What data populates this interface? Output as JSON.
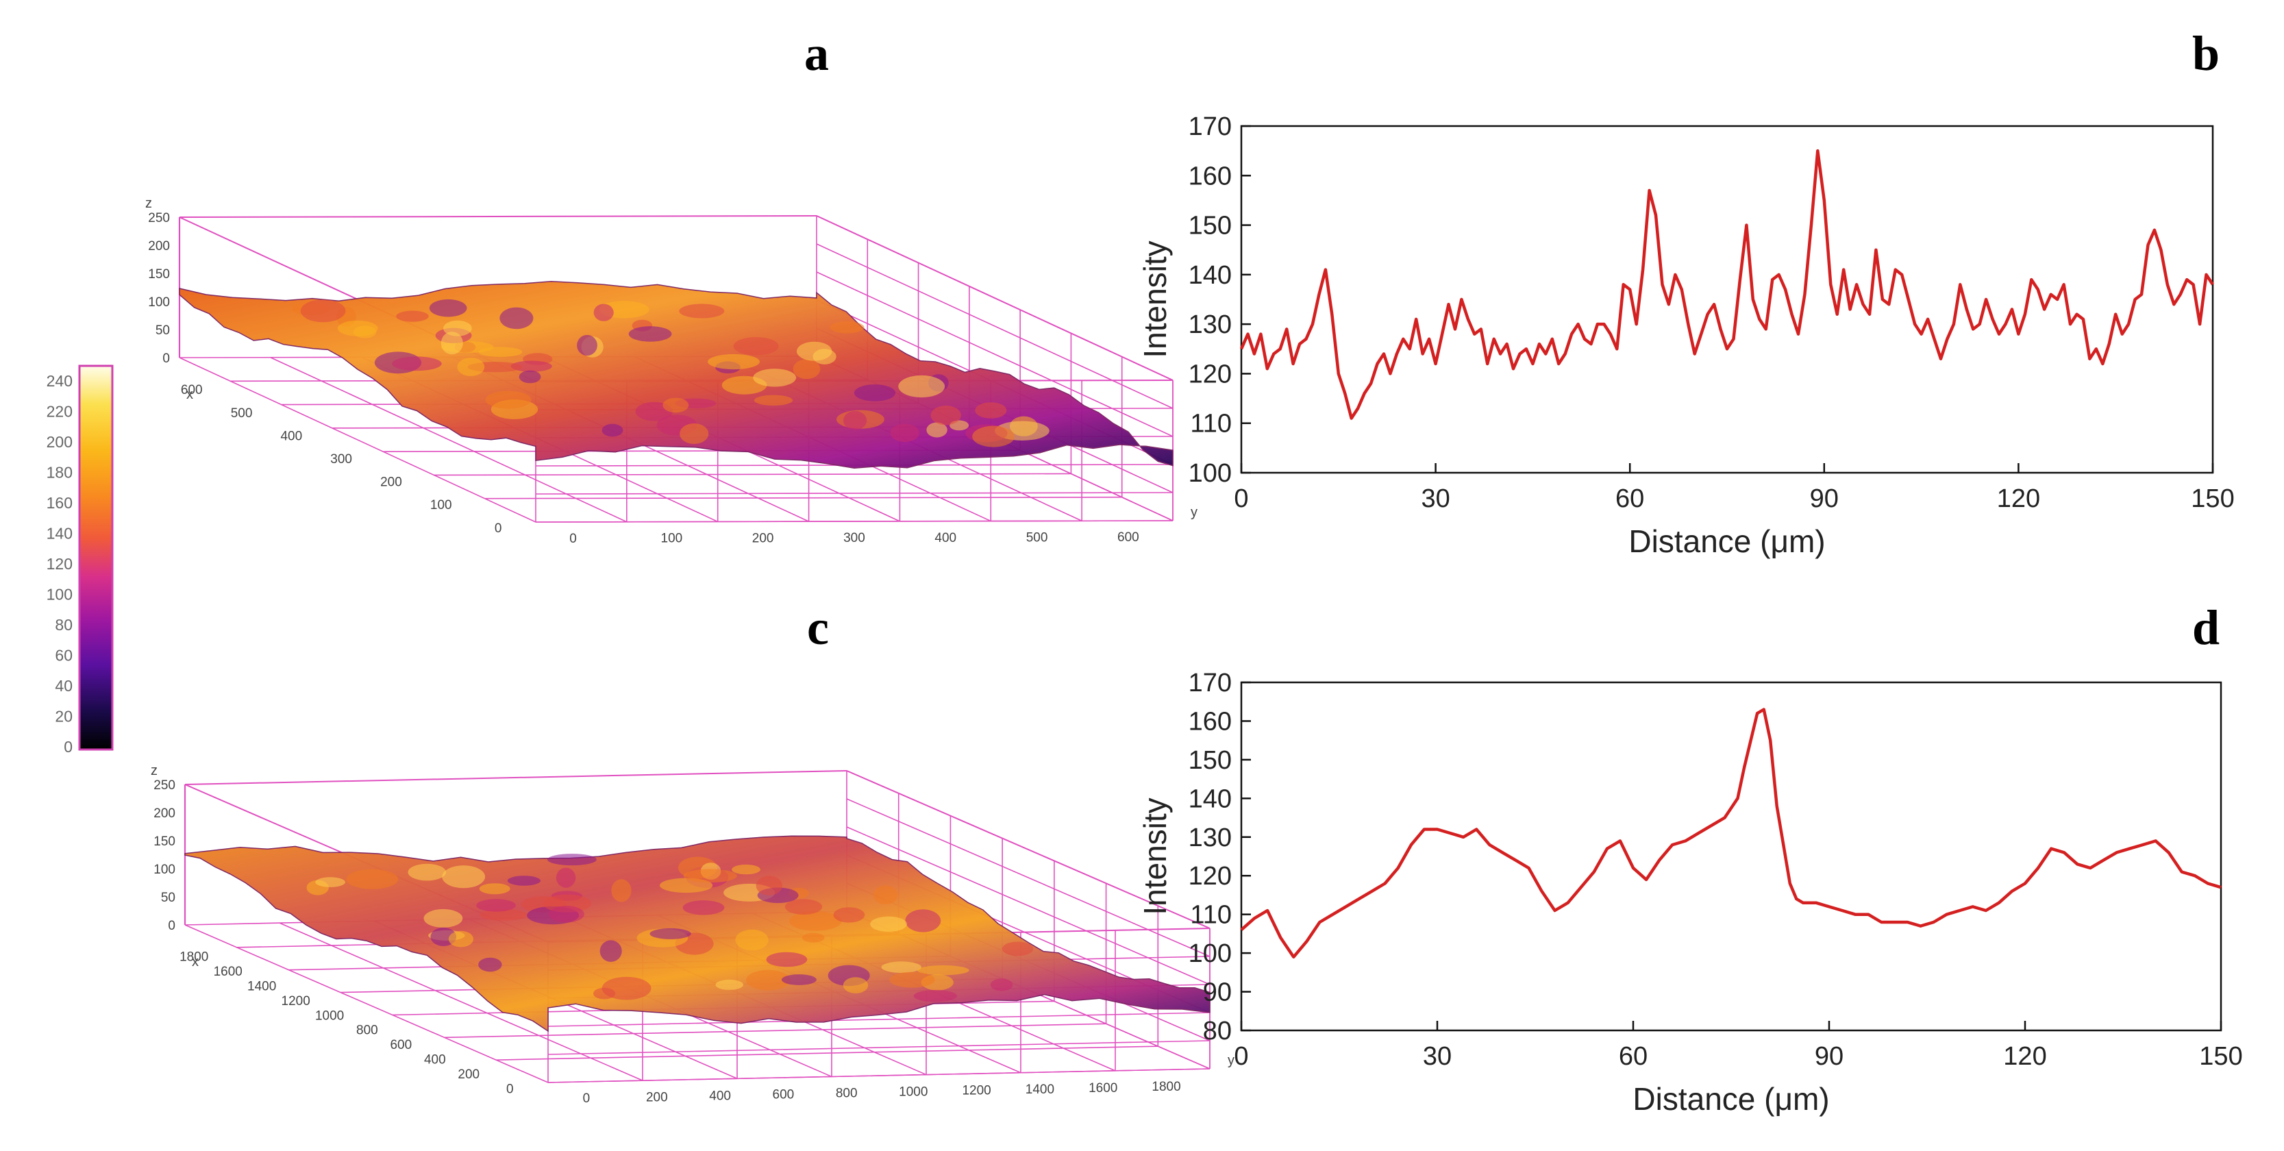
{
  "panels": {
    "a": "a",
    "b": "b",
    "c": "c",
    "d": "d"
  },
  "colorbar": {
    "ticks": [
      "0",
      "20",
      "40",
      "60",
      "80",
      "100",
      "120",
      "140",
      "160",
      "180",
      "200",
      "220",
      "240"
    ],
    "colors": [
      "#000000",
      "#1a0a4a",
      "#5a10a0",
      "#a018a0",
      "#d8308a",
      "#f05a3a",
      "#f88a20",
      "#fbb81a",
      "#fce050",
      "#fffde8"
    ]
  },
  "surface_a": {
    "z_label": "z",
    "x_label": "x",
    "y_label": "y",
    "z_ticks": [
      "250",
      "200",
      "150",
      "100",
      "50",
      "0"
    ],
    "x_ticks": [
      "600",
      "500",
      "400",
      "300",
      "200",
      "100",
      "0"
    ],
    "y_ticks": [
      "0",
      "100",
      "200",
      "300",
      "400",
      "500",
      "600"
    ]
  },
  "surface_c": {
    "z_label": "z",
    "x_label": "x",
    "y_label": "y",
    "z_ticks": [
      "250",
      "200",
      "150",
      "100",
      "50",
      "0"
    ],
    "x_ticks": [
      "1800",
      "1600",
      "1400",
      "1200",
      "1000",
      "800",
      "600",
      "400",
      "200",
      "0"
    ],
    "y_ticks": [
      "0",
      "200",
      "400",
      "600",
      "800",
      "1000",
      "1200",
      "1400",
      "1600",
      "1800"
    ]
  },
  "chart_data": [
    {
      "panel": "b",
      "type": "line",
      "title": "",
      "xlabel": "Distance (μm)",
      "ylabel": "Intensity",
      "xlim": [
        0,
        150
      ],
      "ylim": [
        100,
        170
      ],
      "xticks": [
        0,
        30,
        60,
        90,
        120,
        150
      ],
      "yticks": [
        100,
        110,
        120,
        130,
        140,
        150,
        160,
        170
      ],
      "line_color": "#d42020",
      "x": [
        0,
        1,
        2,
        3,
        4,
        5,
        6,
        7,
        8,
        9,
        10,
        11,
        12,
        13,
        14,
        15,
        16,
        17,
        18,
        19,
        20,
        21,
        22,
        23,
        24,
        25,
        26,
        27,
        28,
        29,
        30,
        31,
        32,
        33,
        34,
        35,
        36,
        37,
        38,
        39,
        40,
        41,
        42,
        43,
        44,
        45,
        46,
        47,
        48,
        49,
        50,
        51,
        52,
        53,
        54,
        55,
        56,
        57,
        58,
        59,
        60,
        61,
        62,
        63,
        64,
        65,
        66,
        67,
        68,
        69,
        70,
        71,
        72,
        73,
        74,
        75,
        76,
        77,
        78,
        79,
        80,
        81,
        82,
        83,
        84,
        85,
        86,
        87,
        88,
        89,
        90,
        91,
        92,
        93,
        94,
        95,
        96,
        97,
        98,
        99,
        100,
        101,
        102,
        103,
        104,
        105,
        106,
        107,
        108,
        109,
        110,
        111,
        112,
        113,
        114,
        115,
        116,
        117,
        118,
        119,
        120,
        121,
        122,
        123,
        124,
        125,
        126,
        127,
        128,
        129,
        130,
        131,
        132,
        133,
        134,
        135,
        136,
        137,
        138,
        139,
        140,
        141,
        142,
        143,
        144,
        145,
        146,
        147,
        148,
        149,
        150
      ],
      "values": [
        125,
        128,
        124,
        128,
        121,
        124,
        125,
        129,
        122,
        126,
        127,
        130,
        136,
        141,
        132,
        120,
        116,
        111,
        113,
        116,
        118,
        122,
        124,
        120,
        124,
        127,
        125,
        131,
        124,
        127,
        122,
        128,
        134,
        129,
        135,
        131,
        128,
        129,
        122,
        127,
        124,
        126,
        121,
        124,
        125,
        122,
        126,
        124,
        127,
        122,
        124,
        128,
        130,
        127,
        126,
        130,
        130,
        128,
        125,
        138,
        137,
        130,
        141,
        157,
        152,
        138,
        134,
        140,
        137,
        130,
        124,
        128,
        132,
        134,
        129,
        125,
        127,
        139,
        150,
        135,
        131,
        129,
        139,
        140,
        137,
        132,
        128,
        136,
        150,
        165,
        155,
        138,
        132,
        141,
        133,
        138,
        134,
        132,
        145,
        135,
        134,
        141,
        140,
        135,
        130,
        128,
        131,
        127,
        123,
        127,
        130,
        138,
        133,
        129,
        130,
        135,
        131,
        128,
        130,
        133,
        128,
        132,
        139,
        137,
        133,
        136,
        135,
        138,
        130,
        132,
        131,
        123,
        125,
        122,
        126,
        132,
        128,
        130,
        135,
        136,
        146,
        149,
        145,
        138,
        134,
        136,
        139,
        138,
        130,
        140,
        138
      ]
    },
    {
      "panel": "d",
      "type": "line",
      "title": "",
      "xlabel": "Distance (μm)",
      "ylabel": "Intensity",
      "xlim": [
        0,
        150
      ],
      "ylim": [
        80,
        170
      ],
      "xticks": [
        0,
        30,
        60,
        90,
        120,
        150
      ],
      "yticks": [
        80,
        90,
        100,
        110,
        120,
        130,
        140,
        150,
        160,
        170
      ],
      "line_color": "#d42020",
      "x": [
        0,
        2,
        4,
        6,
        8,
        10,
        12,
        14,
        16,
        18,
        20,
        22,
        24,
        26,
        28,
        30,
        32,
        34,
        36,
        38,
        40,
        42,
        44,
        46,
        48,
        50,
        52,
        54,
        56,
        58,
        60,
        62,
        64,
        66,
        68,
        70,
        72,
        74,
        76,
        77,
        78,
        79,
        80,
        81,
        82,
        83,
        84,
        85,
        86,
        88,
        90,
        92,
        94,
        96,
        98,
        100,
        102,
        104,
        106,
        108,
        110,
        112,
        114,
        116,
        118,
        120,
        122,
        124,
        126,
        128,
        130,
        132,
        134,
        136,
        138,
        140,
        142,
        144,
        146,
        148,
        150
      ],
      "values": [
        106,
        109,
        111,
        104,
        99,
        103,
        108,
        110,
        112,
        114,
        116,
        118,
        122,
        128,
        132,
        132,
        131,
        130,
        132,
        128,
        126,
        124,
        122,
        116,
        111,
        113,
        117,
        121,
        127,
        129,
        122,
        119,
        124,
        128,
        129,
        131,
        133,
        135,
        140,
        148,
        155,
        162,
        163,
        155,
        138,
        128,
        118,
        114,
        113,
        113,
        112,
        111,
        110,
        110,
        108,
        108,
        108,
        107,
        108,
        110,
        111,
        112,
        111,
        113,
        116,
        118,
        122,
        127,
        126,
        123,
        122,
        124,
        126,
        127,
        128,
        129,
        126,
        121,
        120,
        118,
        117
      ]
    }
  ]
}
